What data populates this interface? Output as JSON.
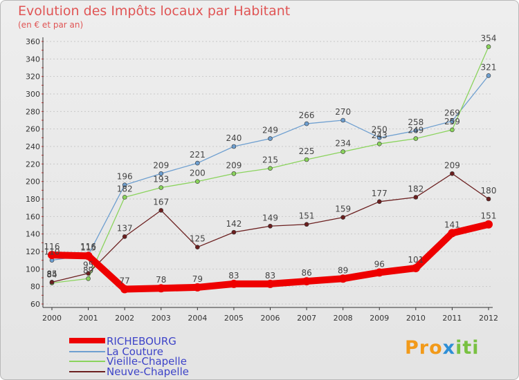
{
  "chart_data": {
    "type": "line",
    "title": "Evolution des Impôts locaux par Habitant",
    "subtitle": "(en € et par an)",
    "xlabel": "",
    "ylabel": "",
    "ylim": [
      60,
      360
    ],
    "yticks": [
      60,
      80,
      100,
      120,
      140,
      160,
      180,
      200,
      220,
      240,
      260,
      280,
      300,
      320,
      340,
      360
    ],
    "grid": "horizontal dashed",
    "categories": [
      "2000",
      "2001",
      "2002",
      "2003",
      "2004",
      "2005",
      "2006",
      "2007",
      "2008",
      "2009",
      "2010",
      "2011",
      "2012"
    ],
    "series": [
      {
        "name": "RICHEBOURG",
        "color": "#ee0000",
        "values": [
          116,
          115,
          77,
          78,
          79,
          83,
          83,
          86,
          89,
          96,
          101,
          141,
          151
        ]
      },
      {
        "name": "La Couture",
        "color": "#6e9fd0",
        "values": [
          110,
          116,
          196,
          209,
          221,
          240,
          249,
          266,
          270,
          250,
          258,
          269,
          321
        ]
      },
      {
        "name": "Vieille-Chapelle",
        "color": "#8ad35c",
        "values": [
          84,
          89,
          182,
          193,
          200,
          209,
          215,
          225,
          234,
          243,
          249,
          259,
          354
        ]
      },
      {
        "name": "Neuve-Chapelle",
        "color": "#6b1f1f",
        "values": [
          85,
          95,
          137,
          167,
          125,
          142,
          149,
          151,
          159,
          177,
          182,
          209,
          180
        ]
      }
    ]
  },
  "logo": {
    "p1": "Pro",
    "p2": "x",
    "p3": "iti"
  }
}
